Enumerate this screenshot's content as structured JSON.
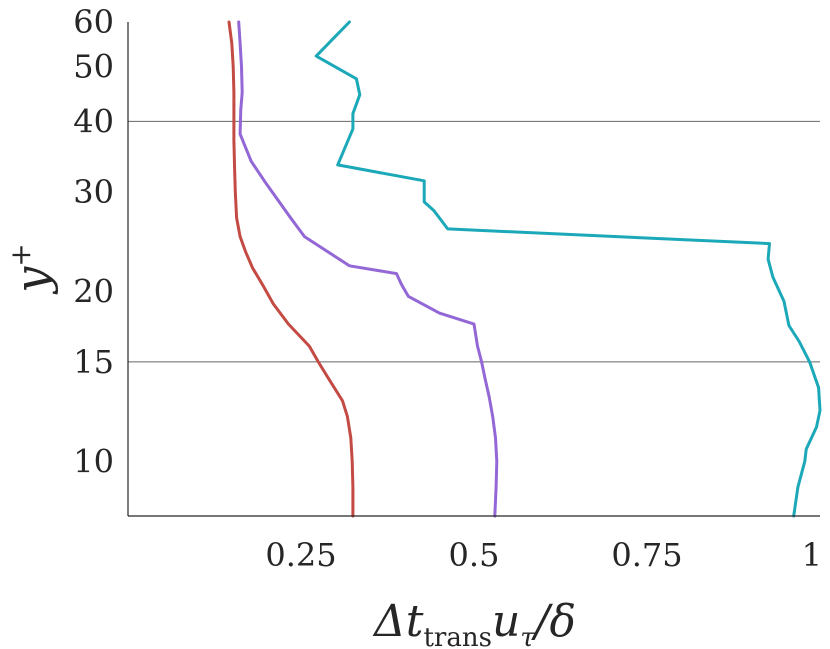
{
  "chart_data": {
    "type": "line",
    "title": "",
    "xlabel": {
      "prefix": "Δt",
      "subscript": "trans",
      "middle": "u",
      "subscript2": "τ",
      "suffix": "/δ"
    },
    "ylabel": {
      "base": "y",
      "superscript": "+"
    },
    "xlim": [
      0,
      1
    ],
    "ylim": [
      8,
      60
    ],
    "yscale": "log",
    "grid": false,
    "xticks": [
      {
        "value": 0.25,
        "label": "0.25"
      },
      {
        "value": 0.5,
        "label": "0.5"
      },
      {
        "value": 0.75,
        "label": "0.75"
      },
      {
        "value": 1,
        "label": "1"
      }
    ],
    "yticks": [
      {
        "value": 10,
        "label": "10"
      },
      {
        "value": 15,
        "label": "15"
      },
      {
        "value": 20,
        "label": "20"
      },
      {
        "value": 30,
        "label": "30"
      },
      {
        "value": 40,
        "label": "40"
      },
      {
        "value": 50,
        "label": "50"
      },
      {
        "value": 60,
        "label": "60"
      }
    ],
    "reference_lines_y": [
      15,
      40
    ],
    "series": [
      {
        "color": "#c44a44",
        "points": [
          [
            0.325,
            8
          ],
          [
            0.325,
            9
          ],
          [
            0.324,
            10
          ],
          [
            0.322,
            11
          ],
          [
            0.317,
            12
          ],
          [
            0.31,
            12.8
          ],
          [
            0.29,
            14
          ],
          [
            0.275,
            15
          ],
          [
            0.262,
            16
          ],
          [
            0.232,
            17.5
          ],
          [
            0.21,
            19
          ],
          [
            0.195,
            20.5
          ],
          [
            0.18,
            22
          ],
          [
            0.17,
            23.5
          ],
          [
            0.162,
            25
          ],
          [
            0.157,
            27
          ],
          [
            0.155,
            30
          ],
          [
            0.154,
            33
          ],
          [
            0.153,
            37
          ],
          [
            0.153,
            40
          ],
          [
            0.153,
            45
          ],
          [
            0.152,
            50
          ],
          [
            0.15,
            55
          ],
          [
            0.146,
            60
          ]
        ]
      },
      {
        "color": "#9367d6",
        "points": [
          [
            0.53,
            8
          ],
          [
            0.532,
            9
          ],
          [
            0.533,
            10
          ],
          [
            0.531,
            11
          ],
          [
            0.527,
            12
          ],
          [
            0.522,
            13
          ],
          [
            0.516,
            14
          ],
          [
            0.511,
            15
          ],
          [
            0.505,
            16
          ],
          [
            0.5,
            17.5
          ],
          [
            0.45,
            18.3
          ],
          [
            0.405,
            19.6
          ],
          [
            0.395,
            20.6
          ],
          [
            0.388,
            21.5
          ],
          [
            0.32,
            22.2
          ],
          [
            0.255,
            25
          ],
          [
            0.235,
            27
          ],
          [
            0.2,
            31
          ],
          [
            0.178,
            34
          ],
          [
            0.162,
            38
          ],
          [
            0.163,
            42
          ],
          [
            0.165,
            45
          ],
          [
            0.164,
            50
          ],
          [
            0.162,
            55
          ],
          [
            0.16,
            60
          ]
        ]
      },
      {
        "color": "#1ba8b8",
        "points": [
          [
            0.962,
            8
          ],
          [
            0.968,
            9
          ],
          [
            0.978,
            10
          ],
          [
            0.98,
            10.5
          ],
          [
            0.995,
            11.5
          ],
          [
            1.0,
            12.3
          ],
          [
            0.998,
            13.5
          ],
          [
            0.985,
            15
          ],
          [
            0.97,
            16.3
          ],
          [
            0.955,
            17.4
          ],
          [
            0.948,
            19.2
          ],
          [
            0.932,
            21.2
          ],
          [
            0.925,
            22.8
          ],
          [
            0.927,
            24.3
          ],
          [
            0.462,
            25.8
          ],
          [
            0.442,
            27.8
          ],
          [
            0.428,
            28.8
          ],
          [
            0.428,
            31.4
          ],
          [
            0.303,
            33.5
          ],
          [
            0.325,
            38.8
          ],
          [
            0.325,
            41.3
          ],
          [
            0.335,
            44.6
          ],
          [
            0.33,
            47.6
          ],
          [
            0.272,
            52.2
          ],
          [
            0.32,
            60
          ]
        ]
      }
    ]
  }
}
